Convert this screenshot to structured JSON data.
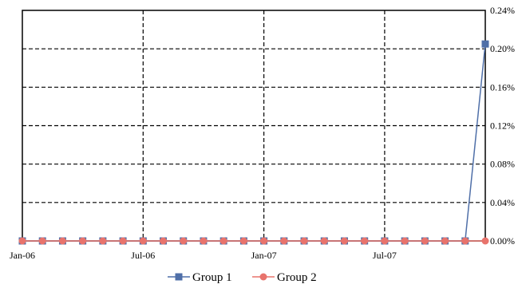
{
  "chart_data": {
    "type": "line",
    "x": [
      "Jan-06",
      "Feb-06",
      "Mar-06",
      "Apr-06",
      "May-06",
      "Jun-06",
      "Jul-06",
      "Aug-06",
      "Sep-06",
      "Oct-06",
      "Nov-06",
      "Dec-06",
      "Jan-07",
      "Feb-07",
      "Mar-07",
      "Apr-07",
      "May-07",
      "Jun-07",
      "Jul-07",
      "Aug-07",
      "Sep-07",
      "Oct-07",
      "Nov-07",
      "Dec-07"
    ],
    "x_tick_labels": [
      "Jan-06",
      "Jul-06",
      "Jan-07",
      "Jul-07"
    ],
    "y_tick_labels": [
      "0.24%",
      "0.20%",
      "0.16%",
      "0.12%",
      "0.08%",
      "0.04%",
      "0.00%"
    ],
    "ylim": [
      0,
      0.24
    ],
    "y_axis_side": "right",
    "grid": true,
    "legend_position": "bottom",
    "series": [
      {
        "name": "Group 1",
        "color": "#4f6fa8",
        "marker": "square",
        "values": [
          0,
          0,
          0,
          0,
          0,
          0,
          0,
          0,
          0,
          0,
          0,
          0,
          0,
          0,
          0,
          0,
          0,
          0,
          0,
          0,
          0,
          0,
          0,
          0.205
        ]
      },
      {
        "name": "Group 2",
        "color": "#e8736c",
        "marker": "circle",
        "values": [
          0,
          0,
          0,
          0,
          0,
          0,
          0,
          0,
          0,
          0,
          0,
          0,
          0,
          0,
          0,
          0,
          0,
          0,
          0,
          0,
          0,
          0,
          0,
          0
        ]
      }
    ]
  }
}
